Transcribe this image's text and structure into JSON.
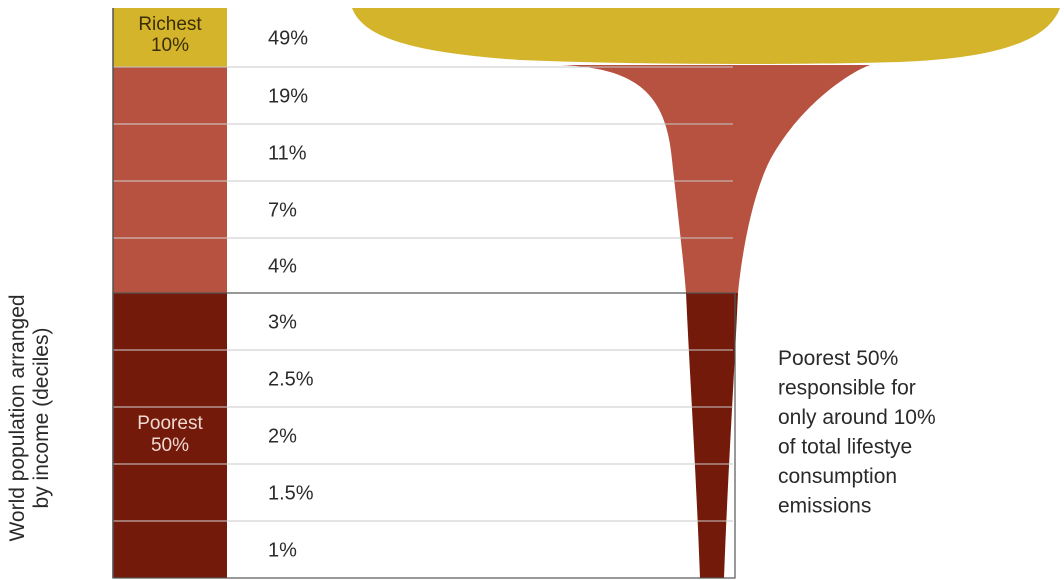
{
  "y_axis_label": [
    "World population arranged",
    "by income (deciles)"
  ],
  "richest_label": [
    "Richest",
    "10%"
  ],
  "poorest_label": [
    "Poorest",
    "50%"
  ],
  "annotation": [
    "Poorest 50%",
    "responsible for",
    "only around 10%",
    "of total lifestye",
    "consumption",
    "emissions"
  ],
  "colors": {
    "richest": "#d4b42a",
    "middle": "#b85240",
    "poorest": "#731a0a",
    "grid": "#c8c8c8",
    "axis": "#555555"
  },
  "chart_data": {
    "type": "bar",
    "orientation": "horizontal",
    "ylabel": "World population arranged by income (deciles)",
    "categories": [
      "Richest 10%",
      "",
      "",
      "",
      "",
      "",
      "",
      "",
      "",
      ""
    ],
    "value_labels": [
      "49%",
      "19%",
      "11%",
      "7%",
      "4%",
      "3%",
      "2.5%",
      "2%",
      "1.5%",
      "1%"
    ],
    "values": [
      49,
      19,
      11,
      7,
      4,
      3,
      2.5,
      2,
      1.5,
      1
    ],
    "groups": [
      {
        "label": "Richest 10%",
        "deciles": [
          1
        ],
        "color": "#d4b42a"
      },
      {
        "label": "",
        "deciles": [
          2,
          3,
          4,
          5
        ],
        "color": "#b85240"
      },
      {
        "label": "Poorest 50%",
        "deciles": [
          6,
          7,
          8,
          9,
          10
        ],
        "color": "#731a0a"
      }
    ]
  }
}
